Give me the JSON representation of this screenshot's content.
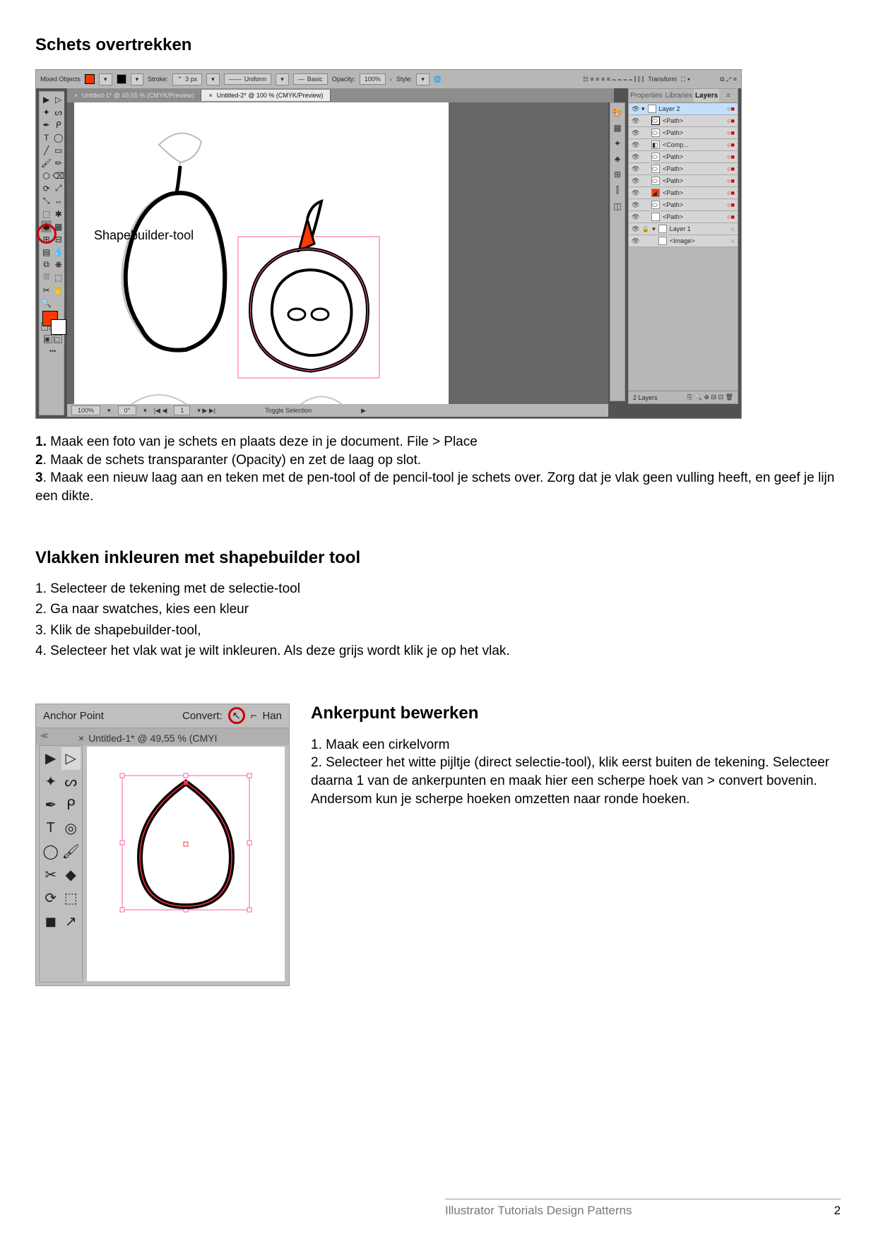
{
  "section1": {
    "title": "Schets overtrekken",
    "steps": "<b>1.</b> Maak een foto van je schets en plaats deze in je document. File > Place\n<b>2</b>. Maak de schets transparanter (Opacity) en zet de laag op slot.\n<b>3</b>. Maak een nieuw laag aan en teken met de pen-tool of de pencil-tool je schets over. Zorg dat je vlak geen vulling heeft, en geef je lijn een dikte.",
    "callout": "Shapebuilder-tool"
  },
  "ai_ui": {
    "mixed_objects": "Mixed Objects",
    "stroke_label": "Stroke:",
    "stroke_value": "3 px",
    "uniform": "Uniform",
    "basic": "Basic",
    "opacity_label": "Opacity:",
    "opacity_value": "100%",
    "style": "Style:",
    "transform": "Transform",
    "tab1": "Untitled-1* @ 49,55 % (CMYK/Preview)",
    "tab2": "Untitled-2* @ 100 % (CMYK/Preview)",
    "panel_props": "Properties",
    "panel_libs": "Libraries",
    "panel_layers": "Layers",
    "layer2": "Layer 2",
    "layer1": "Layer 1",
    "path": "<Path>",
    "comp": "<Comp...",
    "image": "<Image>",
    "status_zoom": "100%",
    "status_rot": "0°",
    "status_artboard": "1",
    "status_toggle": "Toggle Selection",
    "layers_count": "2 Layers"
  },
  "section2": {
    "title": "Vlakken inkleuren met shapebuilder tool",
    "items": [
      "1. Selecteer de tekening met de selectie-tool",
      "2. Ga naar swatches, kies een kleur",
      "3. Klik de shapebuilder-tool,",
      "4. Selecteer het vlak wat je wilt inkleuren. Als deze grijs wordt klik je op het vlak."
    ]
  },
  "ai2_ui": {
    "anchor_point": "Anchor Point",
    "convert": "Convert:",
    "han": "Han",
    "tab": "Untitled-1* @ 49,55 % (CMYI"
  },
  "section3": {
    "title": "Ankerpunt bewerken",
    "p1": "1. Maak een cirkelvorm",
    "p2": "2. Selecteer het witte pijltje (direct selectie-tool), klik eerst buiten de tekening. Selecteer daarna 1 van de ankerpunten en maak hier een scherpe hoek van > convert bovenin. Andersom kun je scherpe hoeken omzetten naar ronde hoeken."
  },
  "footer": {
    "text": "Illustrator Tutorials Design Patterns",
    "page": "2"
  },
  "colors": {
    "accent": "#ff3200",
    "ui_bg": "#b7b7b7",
    "canvas_dark": "#666666",
    "red_circle": "#cc0000"
  }
}
